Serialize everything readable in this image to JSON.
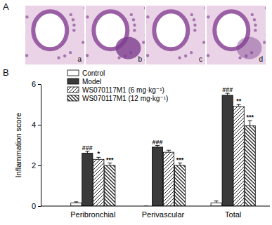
{
  "panel_labels": [
    "A",
    "B"
  ],
  "image_labels": [
    "a",
    "b",
    "c",
    "d"
  ],
  "chart_data": {
    "type": "bar",
    "y_label": "Inflammation score",
    "categories": [
      "Peribronchial",
      "Perivascular",
      "Total"
    ],
    "ylim": [
      0,
      6
    ],
    "yticks": [
      0,
      2,
      4,
      6
    ],
    "legend": "upper left",
    "series": [
      {
        "name": "Control",
        "color": "#ffffff",
        "values": [
          0.15,
          0,
          0.15
        ],
        "errors": [
          0.06,
          0,
          0.1
        ],
        "annotations": [
          null,
          null,
          null
        ]
      },
      {
        "name": "Model",
        "color": "#3a3a3a",
        "values": [
          2.6,
          2.9,
          5.45
        ],
        "errors": [
          0.1,
          0.08,
          0.1
        ],
        "annotations": [
          "###",
          "###",
          "###"
        ]
      },
      {
        "name": "WS070117M1 (6 mg·kg⁻¹)",
        "color": "#ffffff",
        "values": [
          2.3,
          2.65,
          4.9
        ],
        "errors": [
          0.1,
          0.1,
          0.1
        ],
        "annotations": [
          "*",
          null,
          "**"
        ]
      },
      {
        "name": "WS070117M1 (12 mg·kg⁻¹)",
        "color": "#ffffff",
        "values": [
          2.0,
          2.0,
          3.95
        ],
        "errors": [
          0.12,
          0.12,
          0.25
        ],
        "annotations": [
          "***",
          "***",
          "***"
        ]
      }
    ]
  }
}
